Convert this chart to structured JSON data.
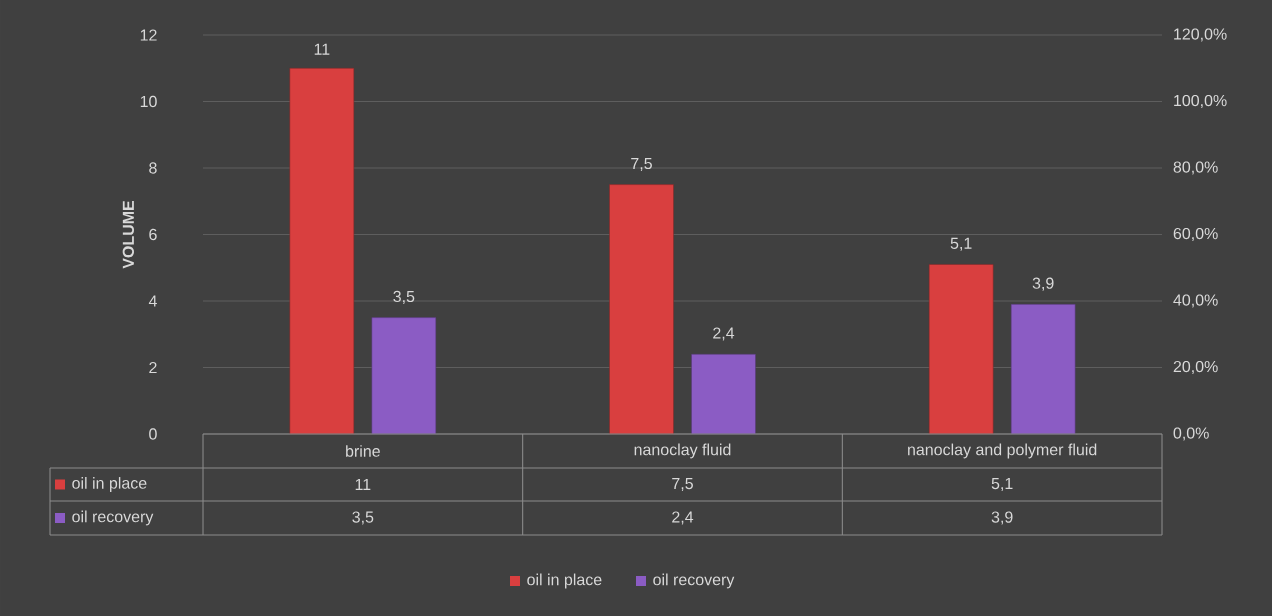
{
  "chart_data": {
    "type": "bar",
    "ylabel": "VOLUME",
    "categories": [
      "brine",
      "nanoclay fluid",
      "nanoclay and polymer fluid"
    ],
    "series": [
      {
        "name": "oil in place",
        "color": "#d93f3f",
        "values": [
          11,
          7.5,
          5.1
        ],
        "value_labels": [
          "11",
          "7,5",
          "5,1"
        ]
      },
      {
        "name": "oil recovery",
        "color": "#8b5cc4",
        "values": [
          3.5,
          2.4,
          3.9
        ],
        "value_labels": [
          "3,5",
          "2,4",
          "3,9"
        ]
      }
    ],
    "ylim": [
      0,
      12
    ],
    "yticks": [
      0,
      2,
      4,
      6,
      8,
      10,
      12
    ],
    "y2lim": [
      0,
      120
    ],
    "y2ticks": [
      {
        "value": 0,
        "label": "0,0%"
      },
      {
        "value": 20,
        "label": "20,0%"
      },
      {
        "value": 40,
        "label": "40,0%"
      },
      {
        "value": 60,
        "label": "60,0%"
      },
      {
        "value": 80,
        "label": "80,0%"
      },
      {
        "value": 100,
        "label": "100,0%"
      },
      {
        "value": 120,
        "label": "120,0%"
      }
    ],
    "grid": "y",
    "legend": "bottom"
  }
}
